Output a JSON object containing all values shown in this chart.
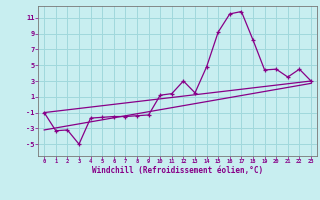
{
  "background_color": "#c8eef0",
  "grid_color": "#a0d8dc",
  "line_color": "#880088",
  "xlabel": "Windchill (Refroidissement éolien,°C)",
  "xlim": [
    -0.5,
    23.5
  ],
  "ylim": [
    -6.5,
    12.5
  ],
  "yticks": [
    -5,
    -3,
    -1,
    1,
    3,
    5,
    7,
    9,
    11
  ],
  "xticks": [
    0,
    1,
    2,
    3,
    4,
    5,
    6,
    7,
    8,
    9,
    10,
    11,
    12,
    13,
    14,
    15,
    16,
    17,
    18,
    19,
    20,
    21,
    22,
    23
  ],
  "series1": {
    "x": [
      0,
      1,
      2,
      3,
      4,
      5,
      6,
      7,
      8,
      9,
      10,
      11,
      12,
      13,
      14,
      15,
      16,
      17,
      18,
      19,
      20,
      21,
      22,
      23
    ],
    "y": [
      -1.0,
      -3.3,
      -3.2,
      -5.0,
      -1.7,
      -1.6,
      -1.5,
      -1.5,
      -1.4,
      -1.3,
      1.2,
      1.4,
      3.0,
      1.5,
      4.8,
      9.2,
      11.5,
      11.8,
      8.2,
      4.4,
      4.5,
      3.5,
      4.5,
      3.0
    ]
  },
  "series2": {
    "x": [
      0,
      23
    ],
    "y": [
      -1.0,
      3.0
    ]
  },
  "series3": {
    "x": [
      0,
      23
    ],
    "y": [
      -3.2,
      2.7
    ]
  }
}
